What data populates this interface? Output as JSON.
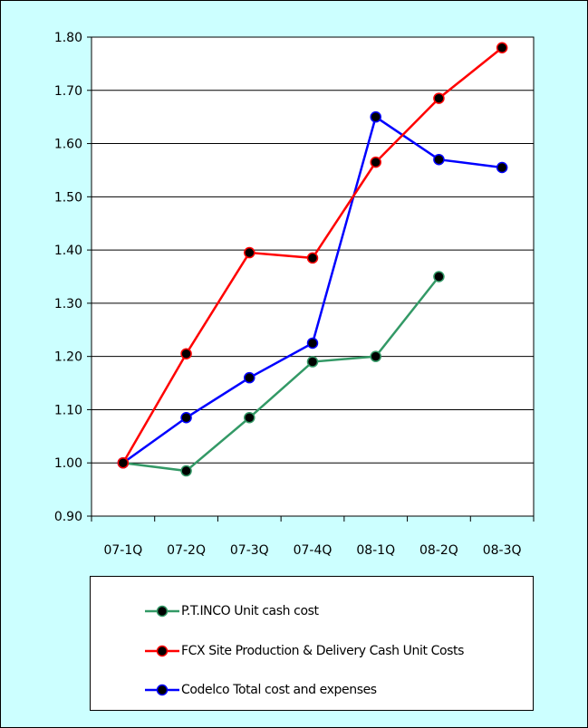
{
  "chart_data": {
    "type": "line",
    "categories": [
      "07-1Q",
      "07-2Q",
      "07-3Q",
      "07-4Q",
      "08-1Q",
      "08-2Q",
      "08-3Q"
    ],
    "ylim": [
      0.9,
      1.8
    ],
    "ytick_step": 0.1,
    "yticks": [
      "0.90",
      "1.00",
      "1.10",
      "1.20",
      "1.30",
      "1.40",
      "1.50",
      "1.60",
      "1.70",
      "1.80"
    ],
    "grid": true,
    "legend_placement": "bottom",
    "series": [
      {
        "name": "P.T.INCO  Unit cash cost",
        "color": "#339966",
        "values": [
          1.0,
          0.985,
          1.085,
          1.19,
          1.2,
          1.35,
          null
        ]
      },
      {
        "name": "FCX Site Production & Delivery Cash Unit Costs",
        "color": "#ff0000",
        "values": [
          1.0,
          1.205,
          1.395,
          1.385,
          1.565,
          1.685,
          1.78
        ]
      },
      {
        "name": "Codelco Total cost and expenses",
        "color": "#0000ff",
        "values": [
          1.0,
          1.085,
          1.16,
          1.225,
          1.65,
          1.57,
          1.555
        ]
      }
    ]
  }
}
